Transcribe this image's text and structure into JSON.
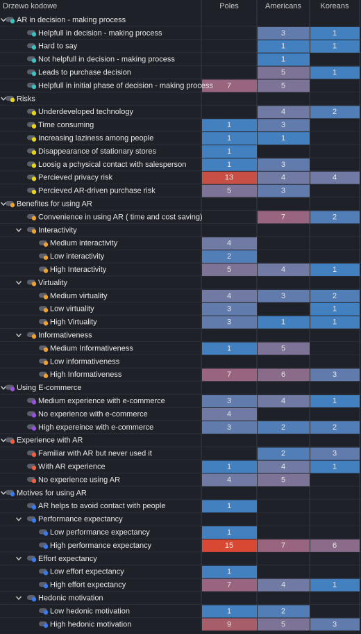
{
  "header": {
    "title": "Drzewo kodowe",
    "columns": [
      "Poles",
      "Americans",
      "Koreans"
    ]
  },
  "rows": [
    {
      "label": "AR in decision - making process",
      "level": 0,
      "group": true,
      "color": "#3cc0c0",
      "values": [
        null,
        null,
        null
      ]
    },
    {
      "label": "Helpfull in decision - making process",
      "level": 1,
      "color": "#3cc0c0",
      "values": [
        null,
        3,
        1
      ]
    },
    {
      "label": "Hard to say",
      "level": 1,
      "color": "#3cc0c0",
      "values": [
        null,
        1,
        1
      ]
    },
    {
      "label": "Not helpfull in decision - making process",
      "level": 1,
      "color": "#3cc0c0",
      "values": [
        null,
        1,
        null
      ]
    },
    {
      "label": "Leads to purchase decision",
      "level": 1,
      "color": "#3cc0c0",
      "values": [
        null,
        5,
        1
      ]
    },
    {
      "label": "Helpfull in initial phase of decision - making process",
      "level": 1,
      "color": "#3cc0c0",
      "values": [
        7,
        5,
        null
      ]
    },
    {
      "label": "Risks",
      "level": 0,
      "group": true,
      "color": "#e8d41c",
      "values": [
        null,
        null,
        null
      ]
    },
    {
      "label": "Underdeveloped technology",
      "level": 1,
      "color": "#e8d41c",
      "values": [
        null,
        4,
        2
      ]
    },
    {
      "label": "Time consuming",
      "level": 1,
      "color": "#e8d41c",
      "values": [
        1,
        3,
        null
      ]
    },
    {
      "label": "Increasing laziness among people",
      "level": 1,
      "color": "#e8d41c",
      "values": [
        1,
        1,
        null
      ]
    },
    {
      "label": "Disappearance of stationary stores",
      "level": 1,
      "color": "#e8d41c",
      "values": [
        1,
        null,
        null
      ]
    },
    {
      "label": "Loosig a pchysical contact with salesperson",
      "level": 1,
      "color": "#e8d41c",
      "values": [
        1,
        3,
        null
      ]
    },
    {
      "label": "Percieved privacy risk",
      "level": 1,
      "color": "#e8d41c",
      "values": [
        13,
        4,
        4
      ]
    },
    {
      "label": "Percieved AR-driven purchase risk",
      "level": 1,
      "color": "#e8d41c",
      "values": [
        5,
        3,
        null
      ]
    },
    {
      "label": "Benefites for using AR",
      "level": 0,
      "group": true,
      "color": "#f0a030",
      "values": [
        null,
        null,
        null
      ]
    },
    {
      "label": "Convenience in using AR ( time and cost  saving)",
      "level": 1,
      "color": "#f0a030",
      "values": [
        null,
        7,
        2
      ]
    },
    {
      "label": "Interactivity",
      "level": 1,
      "group": true,
      "color": "#f0a030",
      "values": [
        null,
        null,
        null
      ]
    },
    {
      "label": "Medium interactivity",
      "level": 2,
      "color": "#f0a030",
      "values": [
        4,
        null,
        null
      ]
    },
    {
      "label": "Low interactivity",
      "level": 2,
      "color": "#f0a030",
      "values": [
        2,
        null,
        null
      ]
    },
    {
      "label": "High Interactivity",
      "level": 2,
      "color": "#f0a030",
      "values": [
        5,
        4,
        1
      ]
    },
    {
      "label": "Virtuality",
      "level": 1,
      "group": true,
      "color": "#f0a030",
      "values": [
        null,
        null,
        null
      ]
    },
    {
      "label": "Medium virtuality",
      "level": 2,
      "color": "#f0a030",
      "values": [
        4,
        3,
        2
      ]
    },
    {
      "label": "Low virtuality",
      "level": 2,
      "color": "#f0a030",
      "values": [
        3,
        null,
        1
      ]
    },
    {
      "label": "High Virtuality",
      "level": 2,
      "color": "#f0a030",
      "values": [
        3,
        1,
        1
      ]
    },
    {
      "label": "Informativeness",
      "level": 1,
      "group": true,
      "color": "#f0a030",
      "values": [
        null,
        null,
        null
      ]
    },
    {
      "label": "Medium Informativeness",
      "level": 2,
      "color": "#f0a030",
      "values": [
        1,
        5,
        null
      ]
    },
    {
      "label": "Low informativeness",
      "level": 2,
      "color": "#f0a030",
      "values": [
        null,
        null,
        null
      ]
    },
    {
      "label": "High Informativeness",
      "level": 2,
      "color": "#f0a030",
      "values": [
        7,
        6,
        3
      ]
    },
    {
      "label": "Using E-commerce",
      "level": 0,
      "group": true,
      "color": "#9a50e0",
      "values": [
        null,
        null,
        null
      ]
    },
    {
      "label": "Medium experience with e-commerce",
      "level": 1,
      "color": "#9a50e0",
      "values": [
        3,
        4,
        1
      ]
    },
    {
      "label": "No experience with e-commerce",
      "level": 1,
      "color": "#9a50e0",
      "values": [
        4,
        null,
        null
      ]
    },
    {
      "label": "High expereince with e-commerce",
      "level": 1,
      "color": "#9a50e0",
      "values": [
        3,
        2,
        2
      ]
    },
    {
      "label": "Experience with AR",
      "level": 0,
      "group": true,
      "color": "#f06040",
      "values": [
        null,
        null,
        null
      ]
    },
    {
      "label": "Familiar with AR but never used it",
      "level": 1,
      "color": "#f06040",
      "values": [
        null,
        2,
        3
      ]
    },
    {
      "label": "With AR experience",
      "level": 1,
      "color": "#f06040",
      "values": [
        1,
        4,
        1
      ]
    },
    {
      "label": "No experience using AR",
      "level": 1,
      "color": "#f06040",
      "values": [
        4,
        5,
        null
      ]
    },
    {
      "label": "Motives for using AR",
      "level": 0,
      "group": true,
      "color": "#3a7cf0",
      "values": [
        null,
        null,
        null
      ]
    },
    {
      "label": "AR helps to avoid contact with people",
      "level": 1,
      "color": "#3a7cf0",
      "values": [
        1,
        null,
        null
      ]
    },
    {
      "label": "Performance expectancy",
      "level": 1,
      "group": true,
      "color": "#3a7cf0",
      "values": [
        null,
        null,
        null
      ]
    },
    {
      "label": "Low performance expectancy",
      "level": 2,
      "color": "#3a7cf0",
      "values": [
        1,
        null,
        null
      ]
    },
    {
      "label": "High performance expectancy",
      "level": 2,
      "color": "#3a7cf0",
      "values": [
        15,
        7,
        6
      ]
    },
    {
      "label": "Effort expectancy",
      "level": 1,
      "group": true,
      "color": "#3a7cf0",
      "values": [
        null,
        null,
        null
      ]
    },
    {
      "label": "Low effort expectancy",
      "level": 2,
      "color": "#3a7cf0",
      "values": [
        1,
        null,
        null
      ]
    },
    {
      "label": "High effort expectancy",
      "level": 2,
      "color": "#3a7cf0",
      "values": [
        7,
        4,
        1
      ]
    },
    {
      "label": "Hedonic motivation",
      "level": 1,
      "group": true,
      "color": "#3a7cf0",
      "values": [
        null,
        null,
        null
      ]
    },
    {
      "label": "Low hedonic motivation",
      "level": 2,
      "color": "#3a7cf0",
      "values": [
        1,
        2,
        null
      ]
    },
    {
      "label": "High hedonic motivation",
      "level": 2,
      "color": "#3a7cf0",
      "values": [
        9,
        5,
        3
      ]
    }
  ]
}
